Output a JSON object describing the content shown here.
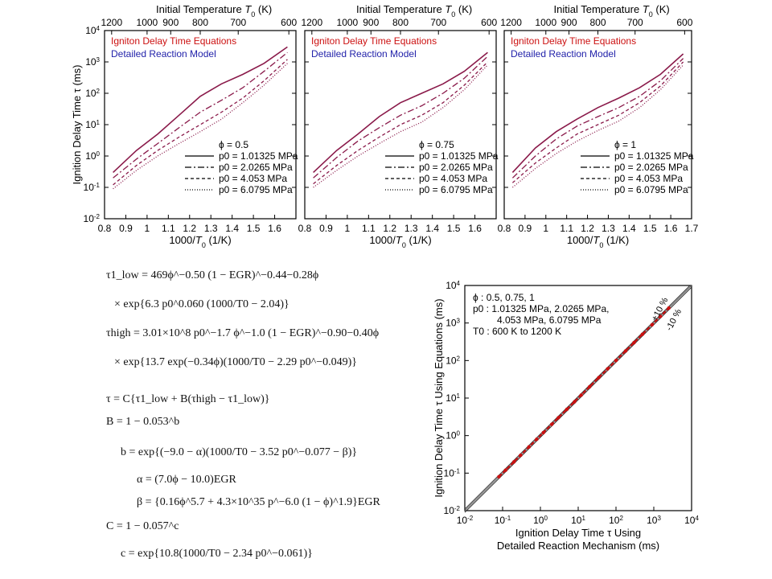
{
  "colors": {
    "red": "#cc1111",
    "blue": "#2222aa",
    "curve": "#8a1a4a",
    "axis": "#000000"
  },
  "panels_common": {
    "ylabel": "Ignition Delay Time τ (ms)",
    "top_xlabel": "Initial Temperature T0 (K)",
    "xlabel": "1000/T0 (1/K)",
    "legend_red": "Igniton Delay Time Equations",
    "legend_blue": "Detailed Reaction Model",
    "pressures": [
      "p0 = 1.01325 MPa",
      "p0 = 2.0265 MPa",
      "p0 = 4.053 MPa",
      "p0 = 6.0795 MPa"
    ]
  },
  "chart_data": [
    {
      "type": "line",
      "phi_label": "ϕ = 0.5",
      "xlabel": "1000/T0 (1/K)",
      "ylabel": "Ignition Delay Time τ (ms)",
      "xlim": [
        0.8,
        1.7
      ],
      "ylim": [
        0.01,
        10000
      ],
      "y_scale": "log",
      "x_ticks": [
        "0.8",
        "0.9",
        "1",
        "1.1",
        "1.2",
        "1.3",
        "1.4",
        "1.5",
        "1.6"
      ],
      "top_ticks": [
        "1200",
        "1000",
        "900",
        "800",
        "700",
        "600"
      ],
      "x": [
        0.84,
        0.95,
        1.05,
        1.15,
        1.25,
        1.35,
        1.45,
        1.55,
        1.66
      ],
      "series": [
        {
          "name": "p0 = 1.01325 MPa",
          "style": "solid",
          "values": [
            0.3,
            1.5,
            5,
            20,
            80,
            200,
            400,
            900,
            3000
          ]
        },
        {
          "name": "p0 = 2.0265 MPa",
          "style": "dashdot",
          "values": [
            0.2,
            0.8,
            2.5,
            8,
            25,
            60,
            150,
            500,
            2000
          ]
        },
        {
          "name": "p0 = 4.053 MPa",
          "style": "dashed",
          "values": [
            0.12,
            0.5,
            1.5,
            4,
            10,
            25,
            70,
            250,
            1200
          ]
        },
        {
          "name": "p0 = 6.0795 MPa",
          "style": "dotted",
          "values": [
            0.09,
            0.35,
            1,
            2.5,
            6,
            15,
            50,
            180,
            900
          ]
        }
      ]
    },
    {
      "type": "line",
      "phi_label": "ϕ = 0.75",
      "xlabel": "1000/T0 (1/K)",
      "ylabel": "Ignition Delay Time τ (ms)",
      "xlim": [
        0.8,
        1.7
      ],
      "ylim": [
        0.01,
        10000
      ],
      "y_scale": "log",
      "x_ticks": [
        "0.8",
        "0.9",
        "1",
        "1.1",
        "1.2",
        "1.3",
        "1.4",
        "1.5",
        "1.6"
      ],
      "top_ticks": [
        "1200",
        "1000",
        "900",
        "800",
        "700",
        "600"
      ],
      "x": [
        0.84,
        0.95,
        1.05,
        1.15,
        1.25,
        1.35,
        1.45,
        1.55,
        1.66
      ],
      "series": [
        {
          "name": "p0 = 1.01325 MPa",
          "style": "solid",
          "values": [
            0.3,
            1.5,
            5,
            18,
            50,
            100,
            200,
            500,
            2000
          ]
        },
        {
          "name": "p0 = 2.0265 MPa",
          "style": "dashdot",
          "values": [
            0.2,
            0.9,
            3,
            8,
            20,
            40,
            100,
            300,
            1500
          ]
        },
        {
          "name": "p0 = 4.053 MPa",
          "style": "dashed",
          "values": [
            0.13,
            0.5,
            1.5,
            4,
            10,
            20,
            50,
            180,
            1000
          ]
        },
        {
          "name": "p0 = 6.0795 MPa",
          "style": "dotted",
          "values": [
            0.1,
            0.35,
            1,
            2.5,
            6,
            12,
            35,
            130,
            800
          ]
        }
      ]
    },
    {
      "type": "line",
      "phi_label": "ϕ = 1",
      "xlabel": "1000/T0 (1/K)",
      "ylabel": "Ignition Delay Time τ (ms)",
      "xlim": [
        0.8,
        1.7
      ],
      "ylim": [
        0.01,
        10000
      ],
      "y_scale": "log",
      "x_ticks": [
        "0.8",
        "0.9",
        "1",
        "1.1",
        "1.2",
        "1.3",
        "1.4",
        "1.5",
        "1.6",
        "1.7"
      ],
      "top_ticks": [
        "1200",
        "1000",
        "900",
        "800",
        "700",
        "600"
      ],
      "x": [
        0.84,
        0.95,
        1.05,
        1.15,
        1.25,
        1.35,
        1.45,
        1.55,
        1.66
      ],
      "series": [
        {
          "name": "p0 = 1.01325 MPa",
          "style": "solid",
          "values": [
            0.3,
            1.8,
            6,
            15,
            35,
            70,
            150,
            400,
            1800
          ]
        },
        {
          "name": "p0 = 2.0265 MPa",
          "style": "dashdot",
          "values": [
            0.2,
            1,
            3.5,
            9,
            18,
            35,
            80,
            250,
            1300
          ]
        },
        {
          "name": "p0 = 4.053 MPa",
          "style": "dashed",
          "values": [
            0.14,
            0.6,
            1.8,
            5,
            10,
            20,
            50,
            170,
            1000
          ]
        },
        {
          "name": "p0 = 6.0795 MPa",
          "style": "dotted",
          "values": [
            0.1,
            0.4,
            1.2,
            3,
            6.5,
            13,
            35,
            130,
            800
          ]
        }
      ]
    },
    {
      "type": "scatter",
      "xlabel_1": "Ignition Delay Time τ Using",
      "xlabel_2": "Detailed Reaction Mechanism (ms)",
      "ylabel": "Ignition Delay Time τ Using Equations (ms)",
      "x_scale": "log",
      "y_scale": "log",
      "xlim": [
        0.01,
        10000
      ],
      "ylim": [
        0.01,
        10000
      ],
      "info_lines": [
        "ϕ : 0.5, 0.75, 1",
        "p0 : 1.01325 MPa, 2.0265 MPa,",
        "4.053 MPa, 6.0795 MPa",
        "T0 : 600 K to 1200 K"
      ],
      "band_labels": [
        "+10 %",
        "-10 %"
      ],
      "x": [
        0.08,
        0.12,
        0.2,
        0.3,
        0.5,
        0.8,
        1.2,
        2,
        3,
        5,
        8,
        12,
        20,
        35,
        60,
        100,
        180,
        300,
        500,
        900,
        1500,
        2500
      ],
      "y": [
        0.08,
        0.12,
        0.2,
        0.3,
        0.5,
        0.8,
        1.2,
        2,
        3,
        5,
        8,
        12,
        20,
        35,
        60,
        100,
        180,
        300,
        500,
        900,
        1500,
        2500
      ]
    }
  ],
  "equations": {
    "tau1_low": "τ1_low = 469ϕ^−0.50 (1 − EGR)^−0.44−0.28ϕ × exp{6.3 p0^0.060 (1000/T0 − 2.04)}",
    "tau_high": "τhigh = 3.01×10^8 p0^−1.7 ϕ^−1.0 (1 − EGR)^−0.90−0.40ϕ × exp{13.7 exp(−0.34ϕ)(1000/T0 − 2.29 p0^−0.049)}",
    "tau": "τ = C{τ1_low + B(τhigh − τ1_low)}",
    "B": "B = 1 − 0.053^b",
    "b": "b = exp{(−9.0 − α)(1000/T0 − 3.52 p0^−0.077 − β)}",
    "alpha": "α = (7.0ϕ − 10.0)EGR",
    "beta": "β = {0.16ϕ^5.7 + 4.3×10^35 p^−6.0 (1 − ϕ)^1.9}EGR",
    "C": "C = 1 − 0.057^c",
    "c": "c = exp{10.8(1000/T0 − 2.34 p0^−0.061)}"
  }
}
